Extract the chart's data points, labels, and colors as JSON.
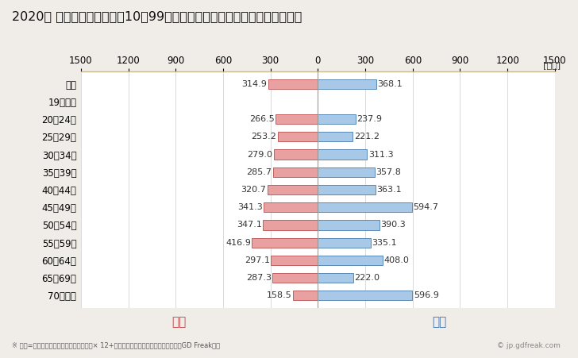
{
  "title": "2020年 民間企業（従業者数10〜99人）フルタイム労働者の男女別平均年収",
  "unit_label": "[万円]",
  "categories": [
    "全体",
    "19歳以下",
    "20〜24歳",
    "25〜29歳",
    "30〜34歳",
    "35〜39歳",
    "40〜44歳",
    "45〜49歳",
    "50〜54歳",
    "55〜59歳",
    "60〜64歳",
    "65〜69歳",
    "70歳以上"
  ],
  "female_values": [
    314.9,
    0,
    266.5,
    253.2,
    279.0,
    285.7,
    320.7,
    341.3,
    347.1,
    416.9,
    297.1,
    287.3,
    158.5
  ],
  "male_values": [
    368.1,
    0,
    237.9,
    221.2,
    311.3,
    357.8,
    363.1,
    594.7,
    390.3,
    335.1,
    408.0,
    222.0,
    596.9
  ],
  "female_color": "#e8a0a0",
  "male_color": "#a8c8e8",
  "female_border_color": "#c06060",
  "male_border_color": "#5a8ab5",
  "xlim": 1500,
  "female_label": "女性",
  "male_label": "男性",
  "female_label_color": "#c04040",
  "male_label_color": "#3a70b0",
  "footnote": "※ 年収=「きまって支給する現金給与額」× 12+「年間賞与その他特別給与額」としてGD Freak推計",
  "copyright": "© jp.gdfreak.com",
  "background_color": "#f0ede8",
  "plot_background_color": "#ffffff",
  "bar_height": 0.55,
  "title_fontsize": 11.5,
  "tick_fontsize": 8.5,
  "value_fontsize": 8,
  "category_fontsize": 8.5,
  "legend_fontsize": 11
}
